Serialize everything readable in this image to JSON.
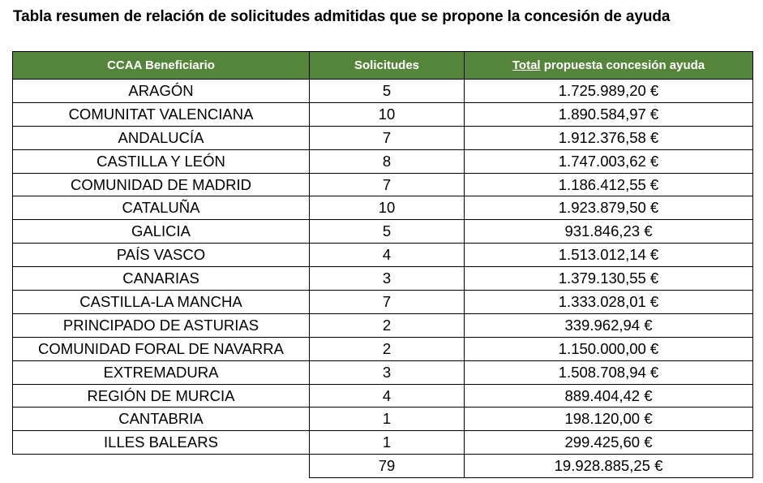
{
  "title": "Tabla resumen de relación de solicitudes admitidas que se propone la concesión de ayuda",
  "table": {
    "headers": {
      "beneficiary": "CCAA Beneficiario",
      "requests": "Solicitudes",
      "total_underlined": "Total",
      "total_rest": " propuesta concesión ayuda"
    },
    "rows": [
      {
        "ccaa": "ARAGÓN",
        "solicitudes": "5",
        "total": "1.725.989,20 €"
      },
      {
        "ccaa": "COMUNITAT VALENCIANA",
        "solicitudes": "10",
        "total": "1.890.584,97 €"
      },
      {
        "ccaa": "ANDALUCÍA",
        "solicitudes": "7",
        "total": "1.912.376,58 €"
      },
      {
        "ccaa": "CASTILLA Y LEÓN",
        "solicitudes": "8",
        "total": "1.747.003,62 €"
      },
      {
        "ccaa": "COMUNIDAD DE MADRID",
        "solicitudes": "7",
        "total": "1.186.412,55 €"
      },
      {
        "ccaa": "CATALUÑA",
        "solicitudes": "10",
        "total": "1.923.879,50 €"
      },
      {
        "ccaa": "GALICIA",
        "solicitudes": "5",
        "total": "931.846,23 €"
      },
      {
        "ccaa": "PAÍS VASCO",
        "solicitudes": "4",
        "total": "1.513.012,14 €"
      },
      {
        "ccaa": "CANARIAS",
        "solicitudes": "3",
        "total": "1.379.130,55 €"
      },
      {
        "ccaa": "CASTILLA-LA MANCHA",
        "solicitudes": "7",
        "total": "1.333.028,01 €"
      },
      {
        "ccaa": "PRINCIPADO DE ASTURIAS",
        "solicitudes": "2",
        "total": "339.962,94 €"
      },
      {
        "ccaa": "COMUNIDAD FORAL DE NAVARRA",
        "solicitudes": "2",
        "total": "1.150.000,00 €"
      },
      {
        "ccaa": "EXTREMADURA",
        "solicitudes": "3",
        "total": "1.508.708,94 €"
      },
      {
        "ccaa": "REGIÓN DE MURCIA",
        "solicitudes": "4",
        "total": "889.404,42 €"
      },
      {
        "ccaa": "CANTABRIA",
        "solicitudes": "1",
        "total": "198.120,00 €"
      },
      {
        "ccaa": "ILLES BALEARS",
        "solicitudes": "1",
        "total": "299.425,60 €"
      }
    ],
    "totals": {
      "solicitudes": "79",
      "total": "19.928.885,25 €"
    }
  },
  "colors": {
    "header_bg": "#55853a",
    "header_text": "#ffffff"
  }
}
